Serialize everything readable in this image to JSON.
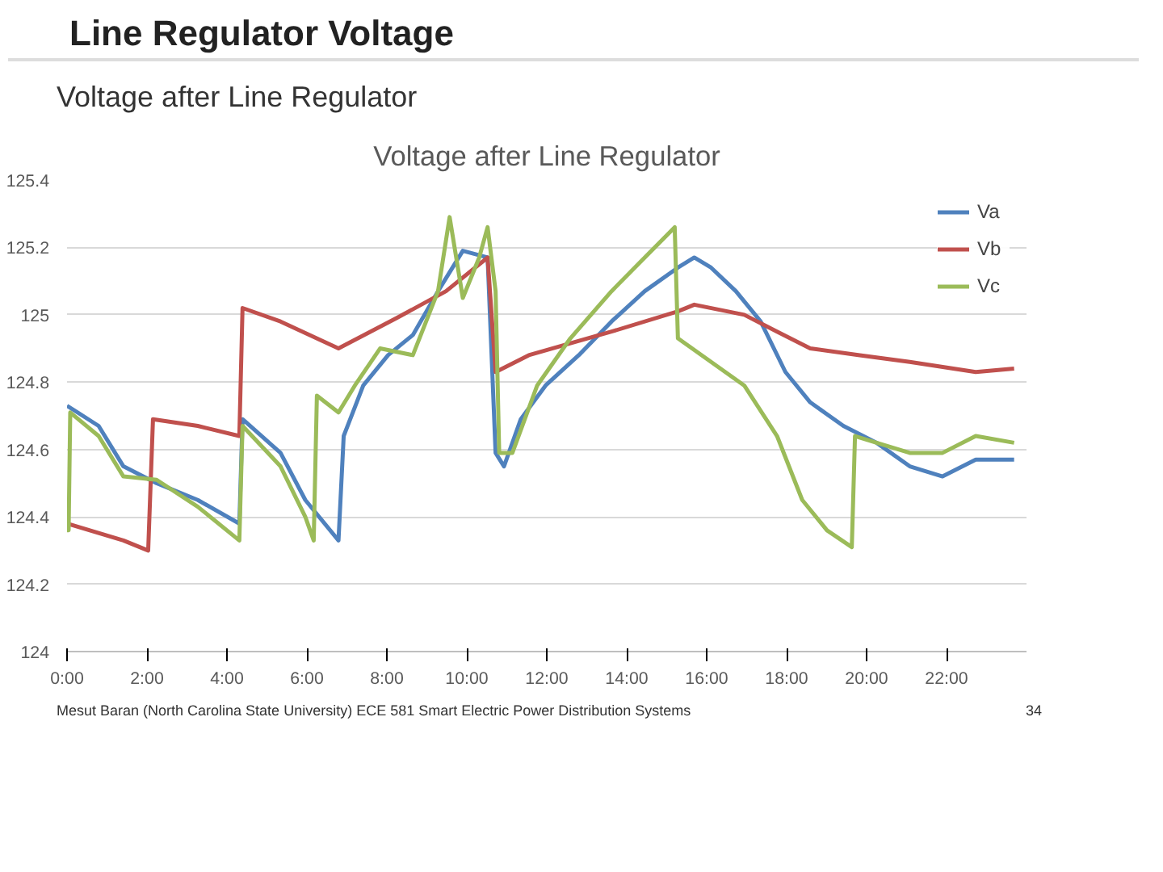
{
  "chart_data": {
    "type": "line",
    "title": "Voltage after Line Regulator",
    "annotations": [
      "Line Regulator Voltage",
      "Voltage after Line Regulator",
      "Mesut Baran (North Carolina State University)   ECE 581 Smart Electric Power Distribution Systems",
      "34"
    ],
    "xlim": [
      0,
      24
    ],
    "xticks": [
      {
        "value": 0,
        "label": "0:00"
      },
      {
        "value": 2,
        "label": "2:00"
      },
      {
        "value": 4,
        "label": "4:00"
      },
      {
        "value": 6,
        "label": "6:00"
      },
      {
        "value": 8,
        "label": "8:00"
      },
      {
        "value": 10,
        "label": "10:00"
      },
      {
        "value": 12,
        "label": "12:00"
      },
      {
        "value": 14,
        "label": "14:00"
      },
      {
        "value": 16,
        "label": "16:00"
      },
      {
        "value": 18,
        "label": "18:00"
      },
      {
        "value": 20,
        "label": "20:00"
      },
      {
        "value": 22,
        "label": "22:00"
      }
    ],
    "ylim": [
      124,
      125.4
    ],
    "yticks": [
      124,
      124.2,
      124.4,
      124.6,
      124.8,
      125,
      125.2,
      125.4
    ],
    "grid": "y",
    "legend": "top right",
    "line_style": "solid",
    "series": [
      {
        "name": "Va",
        "color": "#4f81bd",
        "x": [
          0,
          0.79,
          1.41,
          2.24,
          3.27,
          4.31,
          4.39,
          5.34,
          5.96,
          6.79,
          6.92,
          7.41,
          8.03,
          8.65,
          9.28,
          9.9,
          10.52,
          10.72,
          10.93,
          11.35,
          11.97,
          12.8,
          13.62,
          14.45,
          15.28,
          15.69,
          16.11,
          16.73,
          17.35,
          17.97,
          18.59,
          19.42,
          20.25,
          21.08,
          21.9,
          22.73,
          23.69
        ],
        "values": [
          124.73,
          124.67,
          124.55,
          124.5,
          124.45,
          124.38,
          124.69,
          124.59,
          124.45,
          124.33,
          124.64,
          124.79,
          124.88,
          124.94,
          125.07,
          125.19,
          125.17,
          124.59,
          124.55,
          124.69,
          124.79,
          124.88,
          124.98,
          125.07,
          125.14,
          125.17,
          125.14,
          125.07,
          124.98,
          124.83,
          124.74,
          124.67,
          124.62,
          124.55,
          124.52,
          124.57,
          124.57
        ]
      },
      {
        "name": "Vb",
        "color": "#c0504d",
        "x": [
          0,
          1.41,
          2.03,
          2.15,
          3.27,
          4.31,
          4.39,
          5.34,
          6.79,
          8.24,
          9.48,
          10.52,
          10.72,
          11.55,
          13.62,
          15.28,
          15.69,
          16.94,
          17.76,
          18.59,
          19.83,
          21.08,
          22.73,
          23.69
        ],
        "values": [
          124.38,
          124.33,
          124.3,
          124.69,
          124.67,
          124.64,
          125.02,
          124.98,
          124.9,
          124.99,
          125.07,
          125.17,
          124.83,
          124.88,
          124.95,
          125.01,
          125.03,
          125.0,
          124.95,
          124.9,
          124.88,
          124.86,
          124.83,
          124.84
        ]
      },
      {
        "name": "Vc",
        "color": "#9bbb59",
        "x": [
          0,
          0.04,
          0.08,
          0.79,
          1.41,
          2.24,
          3.27,
          4.31,
          4.39,
          5.34,
          5.96,
          6.17,
          6.25,
          6.79,
          7.2,
          7.83,
          8.65,
          9.28,
          9.57,
          9.9,
          10.31,
          10.52,
          10.72,
          10.81,
          11.14,
          11.76,
          12.59,
          13.62,
          14.45,
          15.2,
          15.28,
          16.11,
          16.94,
          17.76,
          18.39,
          19.01,
          19.63,
          19.71,
          20.25,
          21.08,
          21.9,
          22.73,
          23.69
        ],
        "values": [
          124.36,
          124.36,
          124.71,
          124.64,
          124.52,
          124.51,
          124.43,
          124.33,
          124.67,
          124.55,
          124.4,
          124.33,
          124.76,
          124.71,
          124.79,
          124.9,
          124.88,
          125.07,
          125.29,
          125.05,
          125.17,
          125.26,
          125.07,
          124.59,
          124.59,
          124.79,
          124.93,
          125.07,
          125.17,
          125.26,
          124.93,
          124.86,
          124.79,
          124.64,
          124.45,
          124.36,
          124.31,
          124.64,
          124.62,
          124.59,
          124.59,
          124.64,
          124.62
        ]
      }
    ]
  }
}
